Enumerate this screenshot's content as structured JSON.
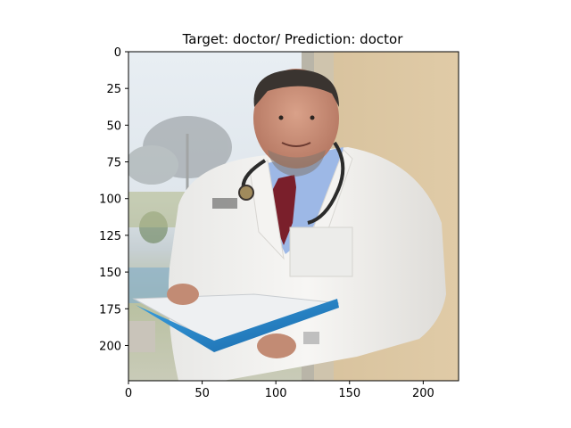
{
  "title": {
    "target_label": "Target:",
    "target_value": "doctor",
    "prediction_label": "Prediction:",
    "prediction_value": "doctor",
    "full": "Target: doctor/ Prediction: doctor"
  },
  "image": {
    "subject": "doctor in white coat holding blue folder by window",
    "colors": {
      "wall": "#d9c39f",
      "window_sky": "#dfe7ee",
      "coat": "#f2f1ef",
      "shirt": "#9db8e6",
      "tie": "#7a1f2b",
      "folder": "#1e7fc4",
      "skin": "#c98f78",
      "hair": "#3a3430"
    }
  },
  "axes": {
    "x_ticks": [
      0,
      50,
      100,
      150,
      200
    ],
    "y_ticks": [
      0,
      25,
      50,
      75,
      100,
      125,
      150,
      175,
      200
    ],
    "x_range": [
      0,
      224
    ],
    "y_range": [
      0,
      224
    ]
  }
}
